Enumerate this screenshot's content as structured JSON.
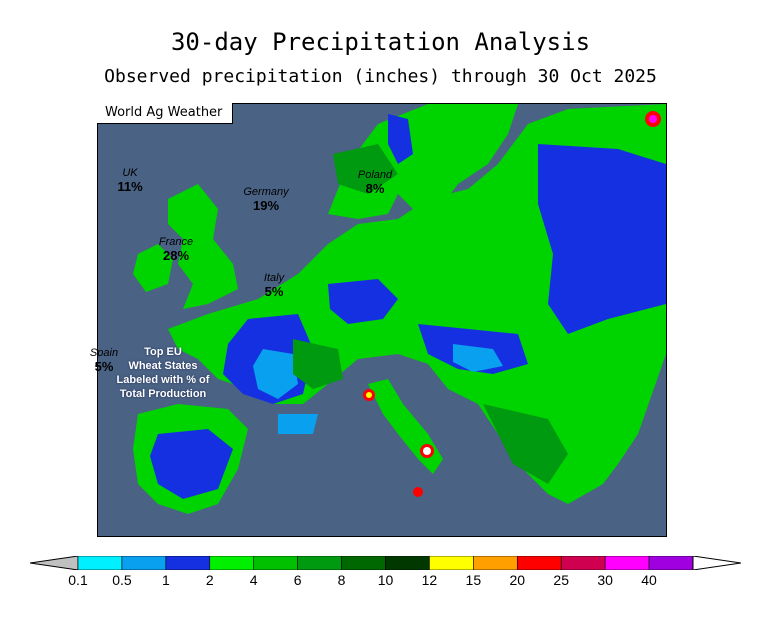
{
  "header": {
    "title": "30-day Precipitation Analysis",
    "subtitle": "Observed precipitation (inches) through 30 Oct 2025"
  },
  "map": {
    "brand": "World Ag Weather",
    "note": [
      "Top EU",
      "Wheat States",
      "Labeled with % of",
      "Total Production"
    ],
    "regions": [
      {
        "name": "UK",
        "pct": "11%"
      },
      {
        "name": "Germany",
        "pct": "19%"
      },
      {
        "name": "Poland",
        "pct": "8%"
      },
      {
        "name": "France",
        "pct": "28%"
      },
      {
        "name": "Italy",
        "pct": "5%"
      },
      {
        "name": "Spain",
        "pct": "5%"
      }
    ]
  },
  "legend": {
    "ticks": [
      "0.1",
      "0.5",
      "1",
      "2",
      "4",
      "6",
      "8",
      "10",
      "12",
      "15",
      "20",
      "25",
      "30",
      "40"
    ],
    "colors": [
      "#00f0ff",
      "#0aa0f0",
      "#1530e0",
      "#00f000",
      "#00c000",
      "#009a10",
      "#006800",
      "#003800",
      "#ffff00",
      "#ffa000",
      "#ff0000",
      "#d00050",
      "#ff00ff",
      "#a000e0"
    ],
    "below_color": "#c0c0c0",
    "above_color": "#ffffff"
  }
}
